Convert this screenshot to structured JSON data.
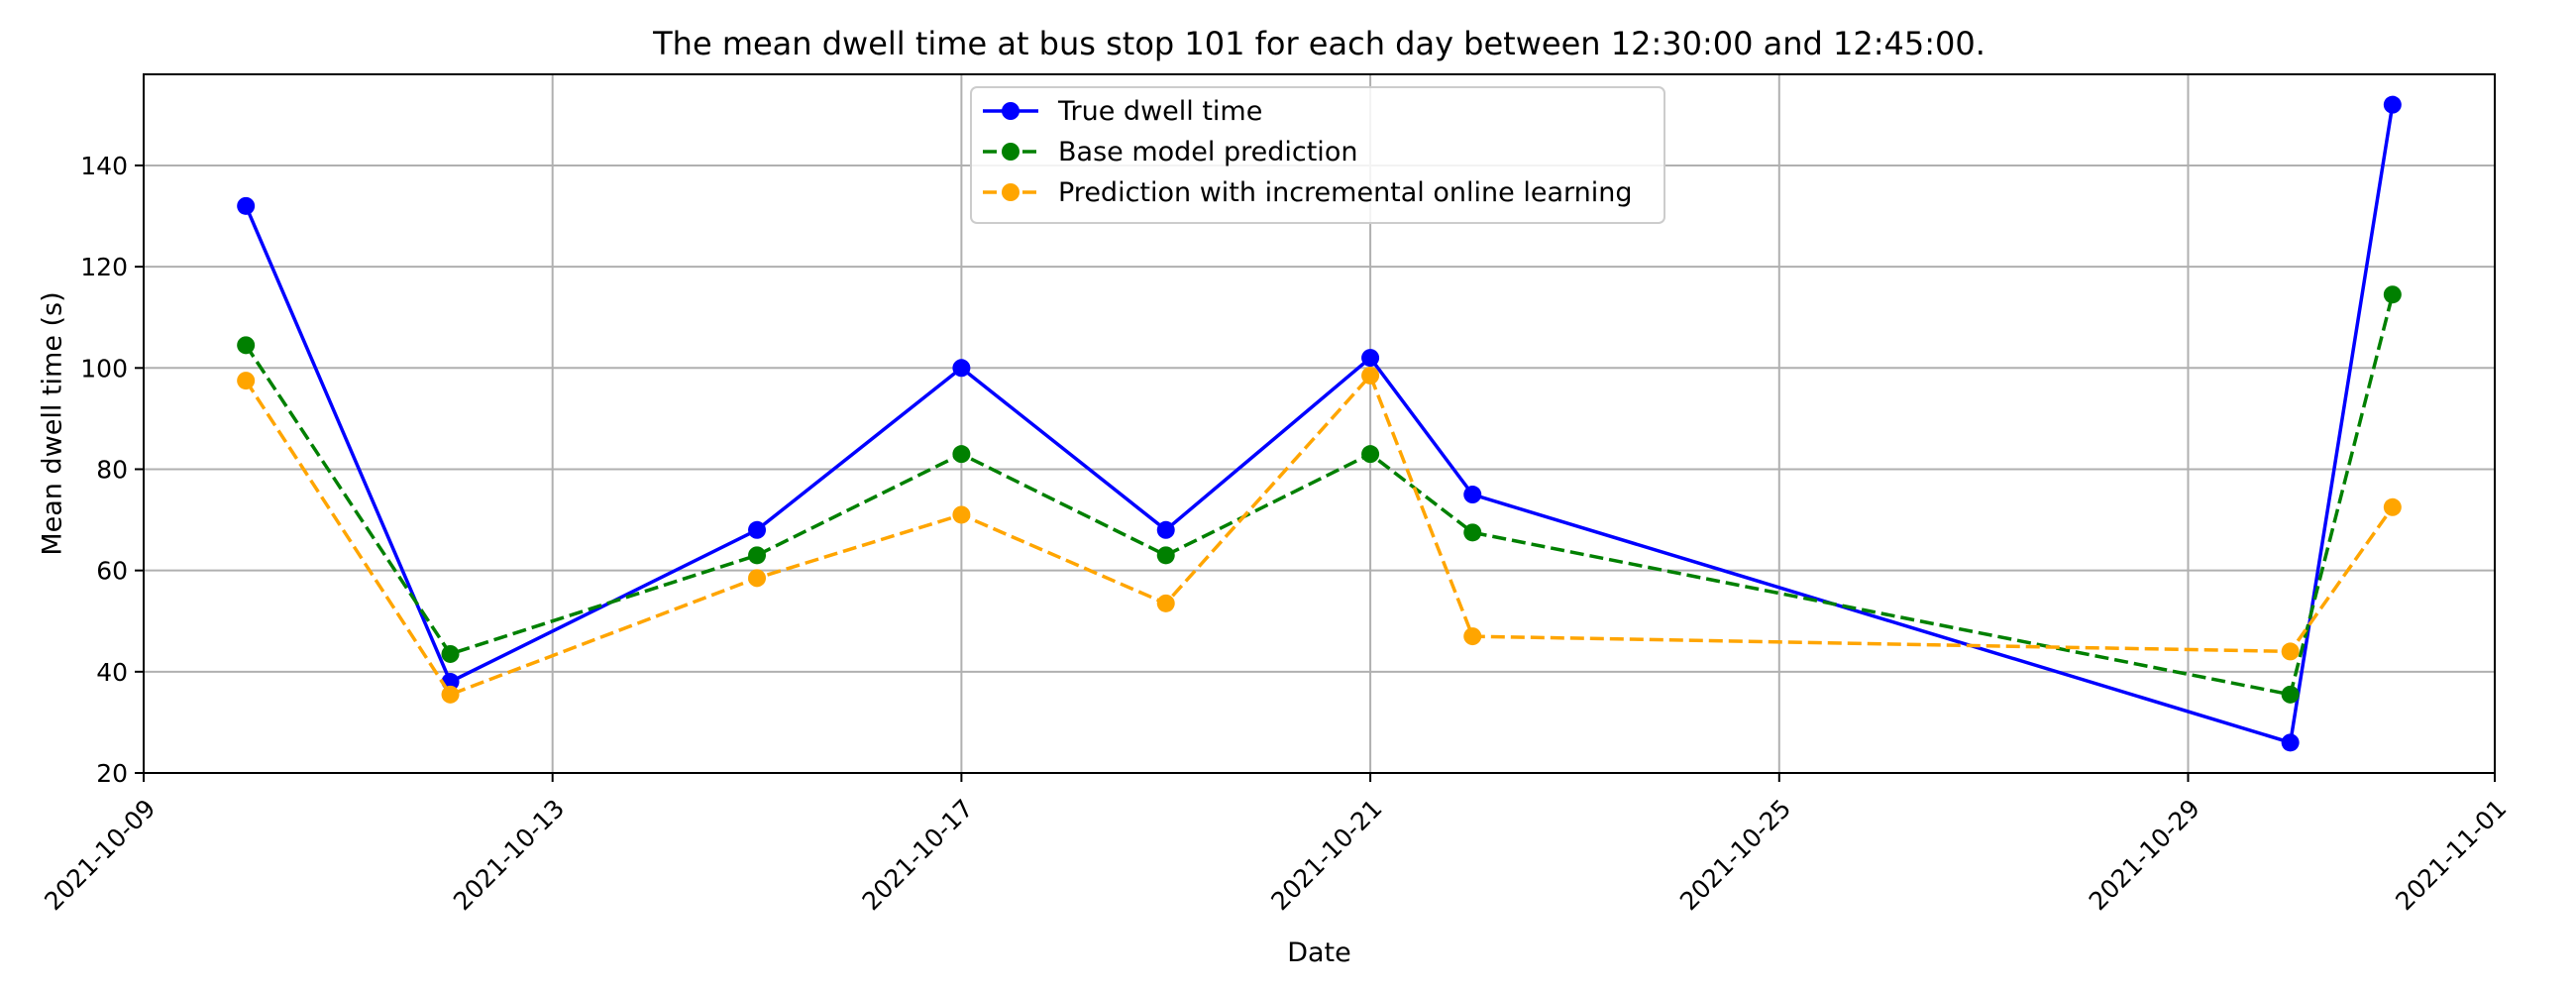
{
  "chart_data": {
    "type": "line",
    "title": "The mean dwell time at bus stop 101 for each day between 12:30:00 and 12:45:00.",
    "xlabel": "Date",
    "ylabel": "Mean dwell time (s)",
    "x_type": "date",
    "xlim": [
      "2021-10-09",
      "2021-11-01"
    ],
    "ylim": [
      20,
      158
    ],
    "x_ticks": [
      "2021-10-09",
      "2021-10-13",
      "2021-10-17",
      "2021-10-21",
      "2021-10-25",
      "2021-10-29",
      "2021-11-01"
    ],
    "y_ticks": [
      20,
      40,
      60,
      80,
      100,
      120,
      140
    ],
    "grid": true,
    "legend_position": "upper center",
    "x": [
      "2021-10-10",
      "2021-10-12",
      "2021-10-15",
      "2021-10-17",
      "2021-10-19",
      "2021-10-21",
      "2021-10-22",
      "2021-10-30",
      "2021-10-31"
    ],
    "series": [
      {
        "name": "True dwell time",
        "color": "#0000ff",
        "line_style": "solid",
        "marker": "circle",
        "values": [
          132,
          38,
          68,
          100,
          68,
          102,
          75,
          26,
          152
        ]
      },
      {
        "name": "Base model prediction",
        "color": "#008000",
        "line_style": "dashed",
        "marker": "circle",
        "values": [
          104.5,
          43.5,
          63,
          83,
          63,
          83,
          67.5,
          35.5,
          114.5
        ]
      },
      {
        "name": "Prediction with incremental online learning",
        "color": "#ffa500",
        "line_style": "dashed",
        "marker": "circle",
        "values": [
          97.5,
          35.5,
          58.5,
          71,
          53.5,
          98.5,
          47,
          44,
          72.5
        ]
      }
    ]
  }
}
